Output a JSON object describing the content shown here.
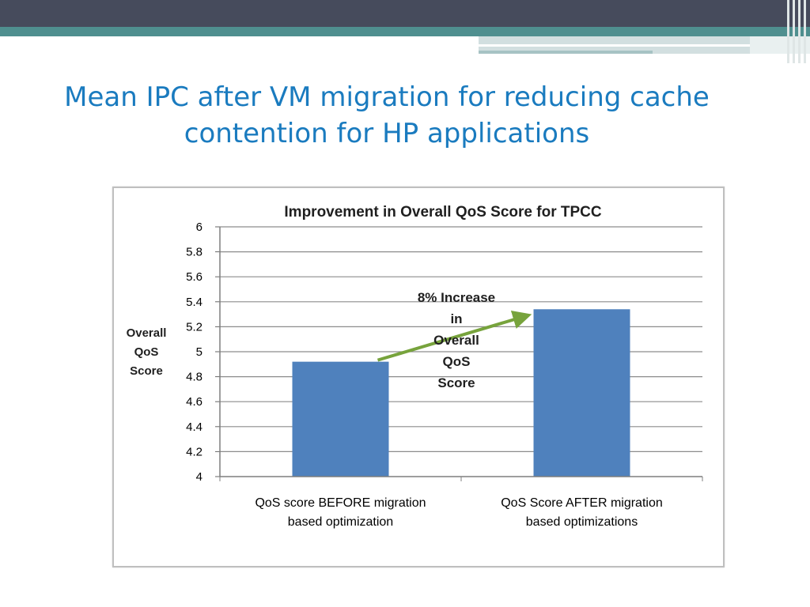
{
  "slide": {
    "title": "Mean IPC after VM migration for reducing cache contention for HP applications"
  },
  "colors": {
    "header_dark": "#464b5c",
    "header_teal": "#4f8f8f",
    "header_light": "#a7c3c4",
    "title": "#1a7bbf",
    "bar": "#4f81bd",
    "arrow": "#77a33c",
    "grid": "#8c8c8c"
  },
  "chart_data": {
    "type": "bar",
    "title": "Improvement in Overall QoS Score for TPCC",
    "ylabel": "Overall QoS Score",
    "ylabel_lines": [
      "Overall",
      "QoS",
      "Score"
    ],
    "xlabel": "",
    "categories": [
      "QoS score BEFORE  migration based optimization",
      "QoS Score AFTER  migration based optimizations"
    ],
    "category_lines": [
      [
        "QoS score BEFORE  migration",
        "based optimization"
      ],
      [
        "QoS Score AFTER  migration",
        "based optimizations"
      ]
    ],
    "values": [
      4.92,
      5.34
    ],
    "ylim": [
      4,
      6
    ],
    "yticks": [
      "4",
      "4.2",
      "4.4",
      "4.6",
      "4.8",
      "5",
      "5.2",
      "5.4",
      "5.6",
      "5.8",
      "6"
    ],
    "grid": true,
    "legend": "none",
    "annotation": {
      "text": "8% Increase in Overall QoS Score",
      "lines": [
        "8% Increase",
        "in",
        "Overall",
        "QoS",
        "Score"
      ]
    }
  }
}
